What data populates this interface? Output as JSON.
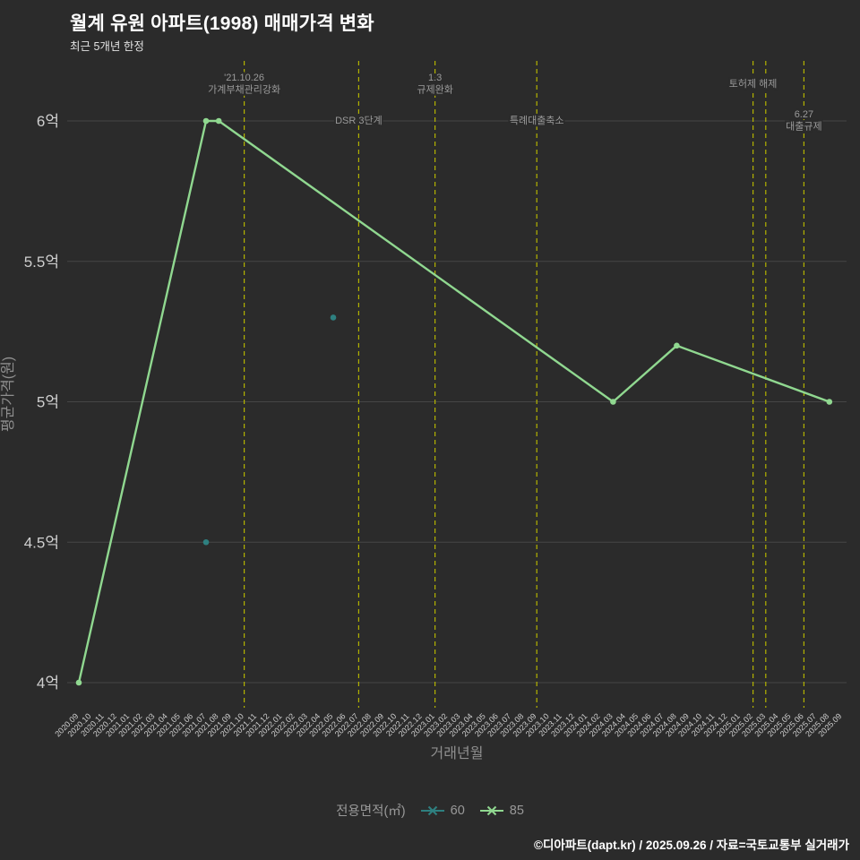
{
  "title": "월계 유원 아파트(1998) 매매가격 변화",
  "subtitle": "최근 5개년 한정",
  "footer": "©디아파트(dapt.kr) / 2025.09.26 / 자료=국토교통부 실거래가",
  "legend": {
    "title": "전용면적(㎡)",
    "items": [
      {
        "label": "60",
        "color": "#2e8080"
      },
      {
        "label": "85",
        "color": "#90d890"
      }
    ]
  },
  "chart_data": {
    "type": "line",
    "title": "월계 유원 아파트(1998) 매매가격 변화",
    "subtitle": "최근 5개년 한정",
    "xlabel": "거래년월",
    "ylabel": "평균가격(원)",
    "ylim": [
      3.87,
      6.13
    ],
    "ytick_values": [
      4,
      4.5,
      5,
      5.5,
      6
    ],
    "ytick_labels": [
      "4억",
      "4.5억",
      "5억",
      "5.5억",
      "6억"
    ],
    "grid": true,
    "legend_position": "bottom",
    "x_categories": [
      "2020.09",
      "2020.10",
      "2020.11",
      "2020.12",
      "2021.01",
      "2021.02",
      "2021.03",
      "2021.04",
      "2021.05",
      "2021.06",
      "2021.07",
      "2021.08",
      "2021.09",
      "2021.10",
      "2021.11",
      "2021.12",
      "2022.01",
      "2022.02",
      "2022.03",
      "2022.04",
      "2022.05",
      "2022.06",
      "2022.07",
      "2022.08",
      "2022.09",
      "2022.10",
      "2022.11",
      "2022.12",
      "2023.01",
      "2023.02",
      "2023.03",
      "2023.04",
      "2023.05",
      "2023.06",
      "2023.07",
      "2023.08",
      "2023.09",
      "2023.10",
      "2023.11",
      "2023.12",
      "2024.01",
      "2024.02",
      "2024.03",
      "2024.04",
      "2024.05",
      "2024.06",
      "2024.07",
      "2024.08",
      "2024.09",
      "2024.10",
      "2024.11",
      "2024.12",
      "2025.01",
      "2025.02",
      "2025.03",
      "2025.04",
      "2025.05",
      "2025.06",
      "2025.07",
      "2025.08",
      "2025.09"
    ],
    "series": [
      {
        "name": "60",
        "mode": "markers",
        "color": "#2e8080",
        "points": [
          [
            "2021.07",
            4.5
          ],
          [
            "2022.05",
            5.3
          ]
        ]
      },
      {
        "name": "85",
        "mode": "lines+markers",
        "color": "#90d890",
        "points": [
          [
            "2020.09",
            4.0
          ],
          [
            "2021.07",
            6.0
          ],
          [
            "2021.08",
            6.0
          ],
          [
            "2024.03",
            5.0
          ],
          [
            "2024.08",
            5.2
          ],
          [
            "2025.08",
            5.0
          ]
        ]
      }
    ],
    "annotations": [
      {
        "x": "2021.10",
        "row": "top",
        "texts": [
          "'21.10.26",
          "가계부채관리강화"
        ]
      },
      {
        "x": "2022.07",
        "row": "bottom",
        "texts": [
          "DSR 3단계"
        ]
      },
      {
        "x": "2023.01",
        "row": "top",
        "texts": [
          "1.3",
          "규제완화"
        ]
      },
      {
        "x": "2023.09",
        "row": "bottom",
        "texts": [
          "특례대출축소"
        ]
      },
      {
        "x": "2025.02",
        "row": "top",
        "texts": [
          "토허제 해제"
        ]
      },
      {
        "x": "2025.03",
        "row": "top",
        "texts": []
      },
      {
        "x": "2025.06",
        "row": "bottom",
        "texts": [
          "6.27",
          "대출규제"
        ]
      }
    ],
    "colors": {
      "background": "#2b2b2b",
      "grid": "#464646",
      "tick_label": "#cfcfcf",
      "axis_label": "#8f8f8f",
      "annotation": "#9a9a9a",
      "vline": "#b3b300",
      "title": "#ffffff",
      "footer": "#ffffff"
    }
  }
}
